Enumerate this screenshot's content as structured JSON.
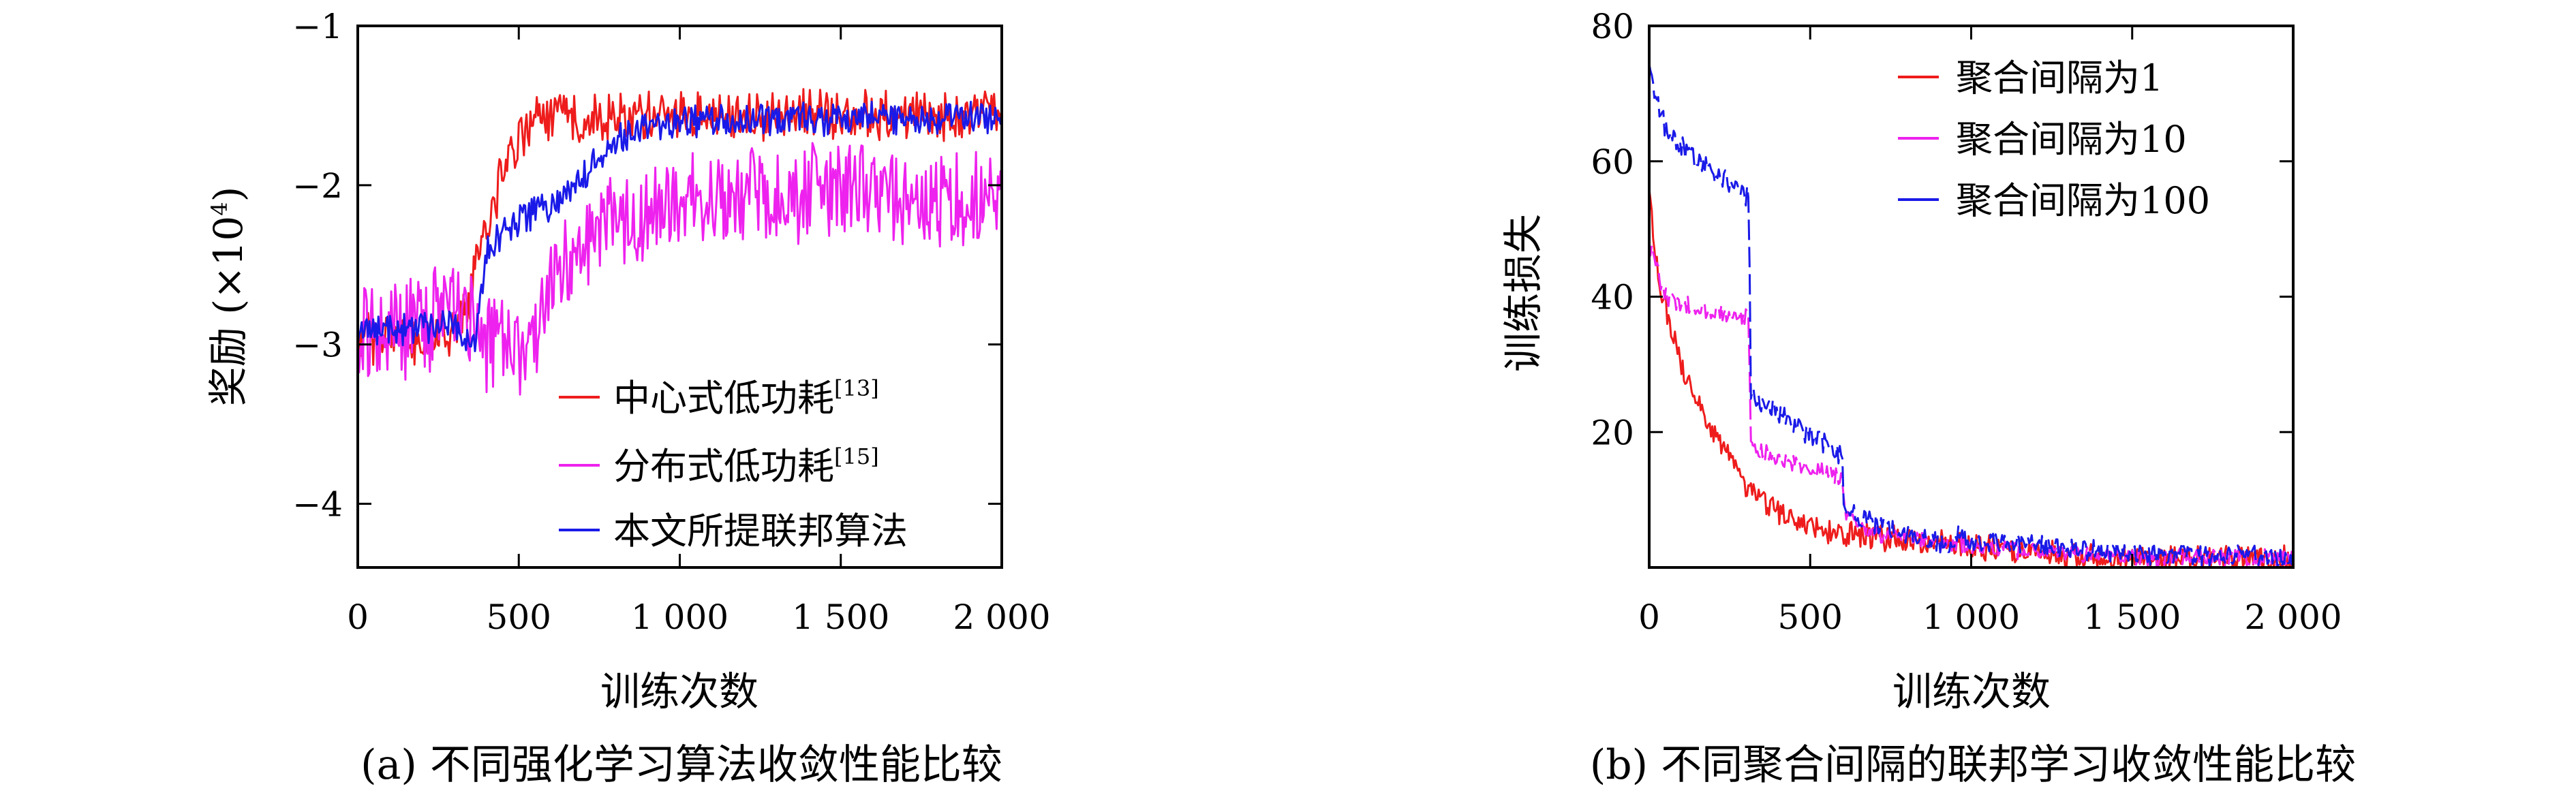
{
  "chart_data": [
    {
      "type": "line",
      "caption": "(a) 不同强化学习算法收敛性能比较",
      "xlabel": "训练次数",
      "ylabel_main": "奖励 (×10",
      "ylabel_sup": "4",
      "ylabel_tail": ")",
      "xlim": [
        0,
        2000
      ],
      "ylim": [
        -4.4,
        -1
      ],
      "xticks": [
        {
          "value": 0,
          "label": "0"
        },
        {
          "value": 500,
          "label": "500"
        },
        {
          "value": 1000,
          "label": "1 000"
        },
        {
          "value": 1500,
          "label": "1 500"
        },
        {
          "value": 2000,
          "label": "2 000"
        }
      ],
      "yticks": [
        {
          "value": -1,
          "label": "−1"
        },
        {
          "value": -2,
          "label": "−2"
        },
        {
          "value": -3,
          "label": "−3"
        },
        {
          "value": -4,
          "label": "−4"
        }
      ],
      "legend_position": "bottom-right",
      "series": [
        {
          "name": "中心式低功耗",
          "name_ref": "[13]",
          "color": "#ee1c1c",
          "dash": "solid",
          "noise": 0.18,
          "points": [
            [
              0,
              -2.95
            ],
            [
              100,
              -2.97
            ],
            [
              200,
              -3.02
            ],
            [
              300,
              -2.9
            ],
            [
              340,
              -2.75
            ],
            [
              400,
              -2.25
            ],
            [
              450,
              -1.92
            ],
            [
              500,
              -1.72
            ],
            [
              550,
              -1.6
            ],
            [
              600,
              -1.57
            ],
            [
              800,
              -1.57
            ],
            [
              1200,
              -1.56
            ],
            [
              1600,
              -1.56
            ],
            [
              2000,
              -1.56
            ]
          ]
        },
        {
          "name": "分布式低功耗",
          "name_ref": "[15]",
          "color": "#ee22ee",
          "dash": "solid",
          "noise": 0.35,
          "points": [
            [
              0,
              -2.95
            ],
            [
              150,
              -2.9
            ],
            [
              300,
              -2.75
            ],
            [
              380,
              -3.0
            ],
            [
              450,
              -2.95
            ],
            [
              520,
              -3.1
            ],
            [
              600,
              -2.6
            ],
            [
              700,
              -2.35
            ],
            [
              800,
              -2.2
            ],
            [
              1000,
              -2.1
            ],
            [
              1300,
              -2.05
            ],
            [
              1600,
              -2.05
            ],
            [
              2000,
              -2.1
            ]
          ]
        },
        {
          "name": "本文所提联邦算法",
          "name_ref": "",
          "color": "#1a1ae8",
          "dash": "solid",
          "noise": 0.12,
          "points": [
            [
              0,
              -2.92
            ],
            [
              150,
              -2.9
            ],
            [
              300,
              -2.85
            ],
            [
              360,
              -3.05
            ],
            [
              400,
              -2.4
            ],
            [
              500,
              -2.2
            ],
            [
              600,
              -2.15
            ],
            [
              700,
              -1.95
            ],
            [
              800,
              -1.72
            ],
            [
              900,
              -1.62
            ],
            [
              1000,
              -1.6
            ],
            [
              1400,
              -1.59
            ],
            [
              2000,
              -1.57
            ]
          ]
        }
      ]
    },
    {
      "type": "line",
      "caption": "(b) 不同聚合间隔的联邦学习收敛性能比较",
      "xlabel": "训练次数",
      "ylabel": "训练损失",
      "xlim": [
        0,
        2000
      ],
      "ylim": [
        0,
        80
      ],
      "xticks": [
        {
          "value": 0,
          "label": "0"
        },
        {
          "value": 500,
          "label": "500"
        },
        {
          "value": 1000,
          "label": "1 000"
        },
        {
          "value": 1500,
          "label": "1 500"
        },
        {
          "value": 2000,
          "label": "2 000"
        }
      ],
      "yticks": [
        {
          "value": 20,
          "label": "20"
        },
        {
          "value": 40,
          "label": "40"
        },
        {
          "value": 60,
          "label": "60"
        },
        {
          "value": 80,
          "label": "80"
        }
      ],
      "legend_position": "top-right",
      "series": [
        {
          "name": "聚合间隔为1",
          "color": "#ee1c1c",
          "dash": "solid",
          "noise": 2.2,
          "points": [
            [
              0,
              55
            ],
            [
              30,
              42
            ],
            [
              100,
              30
            ],
            [
              200,
              20
            ],
            [
              300,
              12
            ],
            [
              400,
              8
            ],
            [
              500,
              6
            ],
            [
              600,
              5
            ],
            [
              800,
              4
            ],
            [
              1000,
              3
            ],
            [
              1200,
              2
            ],
            [
              1500,
              1.5
            ],
            [
              2000,
              1.5
            ]
          ]
        },
        {
          "name": "聚合间隔为10",
          "color": "#ee22ee",
          "dash": "dash-mixed",
          "noise": 1.5,
          "points": [
            [
              0,
              48
            ],
            [
              50,
              40
            ],
            [
              150,
              38
            ],
            [
              300,
              37
            ],
            [
              310,
              37
            ],
            [
              315,
              18
            ],
            [
              400,
              16
            ],
            [
              550,
              14
            ],
            [
              600,
              13
            ],
            [
              605,
              8
            ],
            [
              700,
              5
            ],
            [
              1000,
              3
            ],
            [
              1500,
              1.5
            ],
            [
              2000,
              1.5
            ]
          ]
        },
        {
          "name": "聚合间隔为100",
          "color": "#1a1ae8",
          "dash": "dash-mixed",
          "noise": 1.8,
          "points": [
            [
              0,
              73
            ],
            [
              50,
              65
            ],
            [
              150,
              60
            ],
            [
              300,
              55
            ],
            [
              310,
              55
            ],
            [
              315,
              25
            ],
            [
              400,
              23
            ],
            [
              550,
              18
            ],
            [
              600,
              16
            ],
            [
              605,
              8
            ],
            [
              800,
              5
            ],
            [
              950,
              3
            ],
            [
              960,
              5
            ],
            [
              1000,
              4
            ],
            [
              1500,
              2
            ],
            [
              2000,
              1.5
            ]
          ]
        }
      ]
    }
  ]
}
